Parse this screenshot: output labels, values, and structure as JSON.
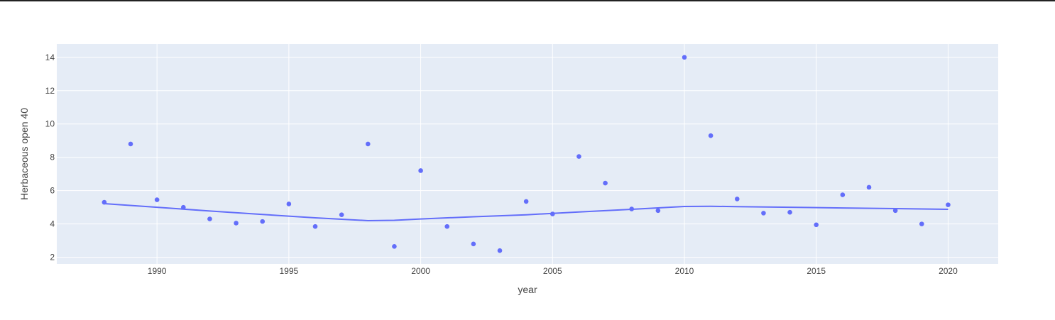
{
  "chart_data": {
    "type": "scatter",
    "xlabel": "year",
    "ylabel": "Herbaceous open 40",
    "xlim": [
      1986.2,
      2021.9
    ],
    "ylim": [
      1.6,
      14.8
    ],
    "x_ticks": [
      1990,
      1995,
      2000,
      2005,
      2010,
      2015,
      2020
    ],
    "y_ticks": [
      2,
      4,
      6,
      8,
      10,
      12,
      14
    ],
    "grid": true,
    "colors": {
      "plot_background": "#e5ecf6",
      "grid": "#ffffff",
      "series": "#636efa",
      "tick_text": "#444444"
    },
    "series": [
      {
        "mode": "markers",
        "x": [
          1988,
          1989,
          1990,
          1991,
          1992,
          1993,
          1994,
          1995,
          1996,
          1997,
          1998,
          1999,
          2000,
          2001,
          2002,
          2003,
          2004,
          2005,
          2006,
          2007,
          2008,
          2009,
          2010,
          2011,
          2012,
          2013,
          2014,
          2015,
          2016,
          2017,
          2018,
          2019,
          2020
        ],
        "y": [
          5.3,
          8.8,
          5.45,
          5.0,
          4.3,
          4.05,
          4.15,
          5.2,
          3.85,
          4.55,
          8.8,
          2.65,
          7.2,
          3.85,
          2.8,
          2.4,
          5.35,
          4.6,
          8.05,
          6.45,
          4.9,
          4.8,
          14.0,
          9.3,
          5.5,
          4.65,
          4.7,
          3.95,
          5.75,
          6.2,
          4.8,
          4.0,
          5.15
        ]
      },
      {
        "mode": "lines",
        "x": [
          1988,
          1990,
          1992,
          1994,
          1996,
          1998,
          1999,
          2000,
          2002,
          2004,
          2006,
          2008,
          2010,
          2011,
          2012,
          2014,
          2016,
          2018,
          2020
        ],
        "y": [
          5.22,
          5.0,
          4.78,
          4.57,
          4.37,
          4.2,
          4.22,
          4.3,
          4.43,
          4.55,
          4.72,
          4.88,
          5.05,
          5.06,
          5.04,
          5.0,
          4.96,
          4.92,
          4.88
        ]
      }
    ]
  }
}
